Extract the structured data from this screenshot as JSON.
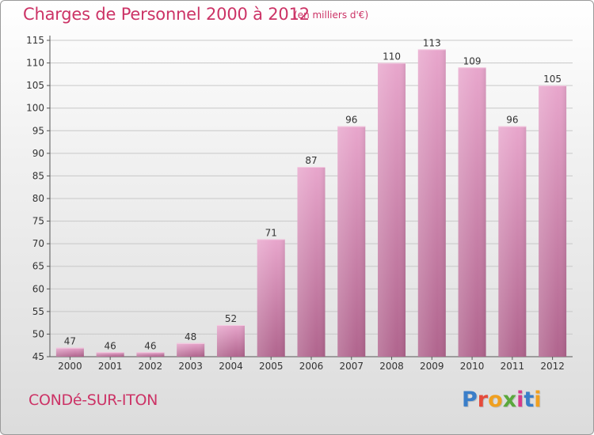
{
  "header": {
    "title": "Charges de Personnel 2000 à 2012",
    "subtitle": "(en milliers d'€)"
  },
  "footer": {
    "commune": "CONDé-SUR-ITON",
    "logo_text": "Proxiti"
  },
  "colors": {
    "title": "#cc3366",
    "bar_top": "#e8a6cc",
    "bar_bottom": "#b0648d",
    "logo": [
      "#3a7ec9",
      "#e64b3b",
      "#f0a020",
      "#5aa83c",
      "#d63a8a",
      "#3a7ec9",
      "#f0a020"
    ]
  },
  "chart_data": {
    "type": "bar",
    "title": "Charges de Personnel 2000 à 2012",
    "categories": [
      "2000",
      "2001",
      "2002",
      "2003",
      "2004",
      "2005",
      "2006",
      "2007",
      "2008",
      "2009",
      "2010",
      "2011",
      "2012"
    ],
    "values": [
      47,
      46,
      46,
      48,
      52,
      71,
      87,
      96,
      110,
      113,
      109,
      96,
      105
    ],
    "ylim": [
      45,
      115
    ],
    "yticks": [
      45,
      50,
      55,
      60,
      65,
      70,
      75,
      80,
      85,
      90,
      95,
      100,
      105,
      110,
      115
    ],
    "grid": true,
    "legend": "none",
    "data_labels": true
  }
}
